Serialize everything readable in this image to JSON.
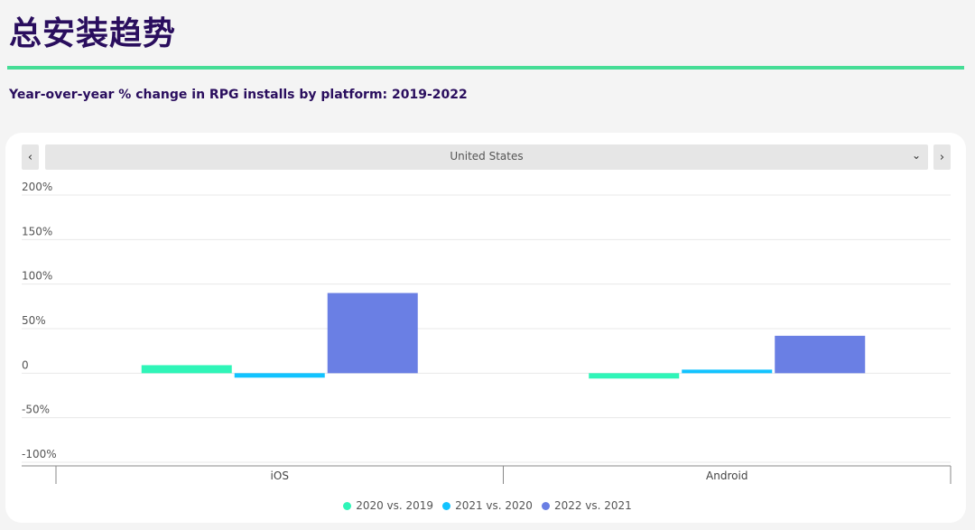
{
  "header": {
    "title": "总安装趋势",
    "subtitle": "Year-over-year % change in RPG installs by platform: 2019-2022"
  },
  "selector": {
    "region": "United States",
    "prev_icon": "chevron-left-icon",
    "next_icon": "chevron-right-icon",
    "dropdown_icon": "chevron-down-icon"
  },
  "colors": {
    "accent": "#45dd96",
    "title": "#2a0e5e"
  },
  "chart_data": {
    "type": "bar",
    "categories": [
      "iOS",
      "Android"
    ],
    "series": [
      {
        "name": "2020 vs. 2019",
        "values": [
          9,
          -6
        ],
        "color": "#2ff5b8"
      },
      {
        "name": "2021 vs. 2020",
        "values": [
          -5,
          4
        ],
        "color": "#12c3ff"
      },
      {
        "name": "2022 vs. 2021",
        "values": [
          90,
          42
        ],
        "color": "#6a7fe4"
      }
    ],
    "yticks": [
      200,
      150,
      100,
      50,
      0,
      -50,
      -100
    ],
    "ytick_labels": [
      "200%",
      "150%",
      "100%",
      "50%",
      "0",
      "-50%",
      "-100%"
    ],
    "ylim": [
      -100,
      200
    ],
    "grid": true,
    "legend_position": "bottom"
  }
}
